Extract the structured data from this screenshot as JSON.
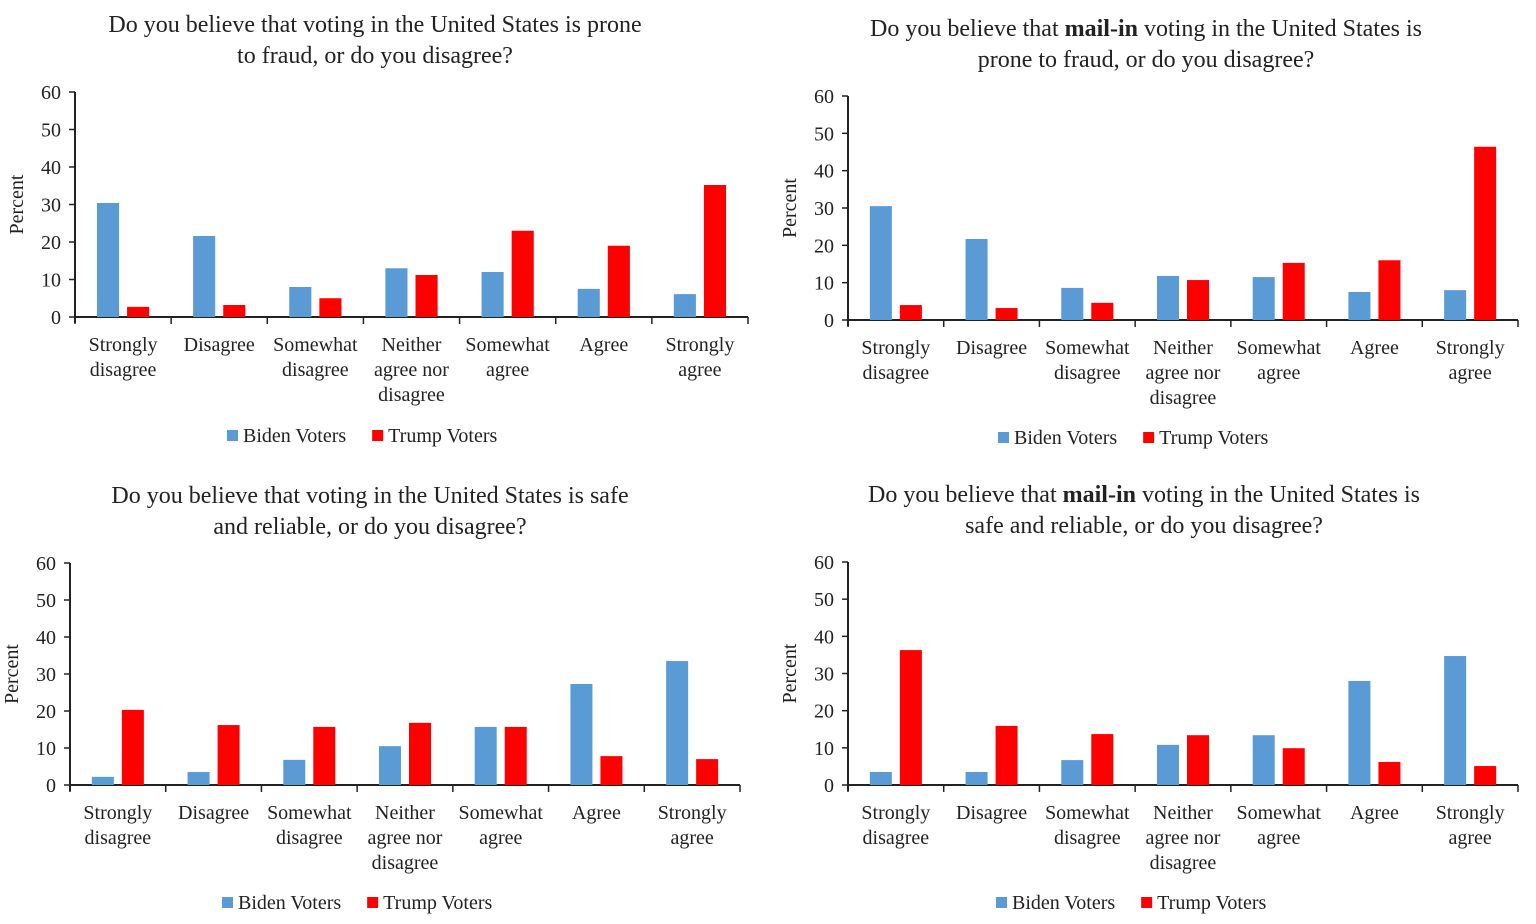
{
  "colors": {
    "biden": "#5B9BD5",
    "trump": "#FF0000",
    "axis": "#222222"
  },
  "chart_data": [
    {
      "type": "bar",
      "title": {
        "line1_pre": "Do you believe that voting in the United States is prone",
        "line1_bold": "",
        "line1_post": "",
        "line2": "to fraud, or do you disagree?"
      },
      "ylabel": "Percent",
      "ylim": [
        0,
        60
      ],
      "yticks": [
        "0",
        "10",
        "20",
        "30",
        "40",
        "50",
        "60"
      ],
      "categories": [
        [
          "Strongly",
          "disagree"
        ],
        [
          "Disagree"
        ],
        [
          "Somewhat",
          "disagree"
        ],
        [
          "Neither",
          "agree nor",
          "disagree"
        ],
        [
          "Somewhat",
          "agree"
        ],
        [
          "Agree"
        ],
        [
          "Strongly",
          "agree"
        ]
      ],
      "legend": "bottom",
      "series": [
        {
          "name": "Biden Voters",
          "values": [
            30.4,
            21.6,
            8.0,
            13.0,
            12.0,
            7.5,
            6.1
          ]
        },
        {
          "name": "Trump Voters",
          "values": [
            2.7,
            3.2,
            5.0,
            11.2,
            23.0,
            19.0,
            35.2
          ]
        }
      ]
    },
    {
      "type": "bar",
      "title": {
        "line1_pre": "Do you believe that ",
        "line1_bold": "mail-in",
        "line1_post": " voting in the United States is",
        "line2": "prone to fraud, or do you disagree?"
      },
      "ylabel": "Percent",
      "ylim": [
        0,
        60
      ],
      "yticks": [
        "0",
        "10",
        "20",
        "30",
        "40",
        "50",
        "60"
      ],
      "categories": [
        [
          "Strongly",
          "disagree"
        ],
        [
          "Disagree"
        ],
        [
          "Somewhat",
          "disagree"
        ],
        [
          "Neither",
          "agree nor",
          "disagree"
        ],
        [
          "Somewhat",
          "agree"
        ],
        [
          "Agree"
        ],
        [
          "Strongly",
          "agree"
        ]
      ],
      "legend": "bottom",
      "series": [
        {
          "name": "Biden Voters",
          "values": [
            30.5,
            21.7,
            8.6,
            11.8,
            11.5,
            7.5,
            8.0
          ]
        },
        {
          "name": "Trump Voters",
          "values": [
            4.0,
            3.2,
            4.6,
            10.7,
            15.3,
            16.0,
            46.4
          ]
        }
      ]
    },
    {
      "type": "bar",
      "title": {
        "line1_pre": "Do you believe that voting in the United States is safe",
        "line1_bold": "",
        "line1_post": "",
        "line2": "and reliable, or do you disagree?"
      },
      "ylabel": "Percent",
      "ylim": [
        0,
        60
      ],
      "yticks": [
        "0",
        "10",
        "20",
        "30",
        "40",
        "50",
        "60"
      ],
      "categories": [
        [
          "Strongly",
          "disagree"
        ],
        [
          "Disagree"
        ],
        [
          "Somewhat",
          "disagree"
        ],
        [
          "Neither",
          "agree nor",
          "disagree"
        ],
        [
          "Somewhat",
          "agree"
        ],
        [
          "Agree"
        ],
        [
          "Strongly",
          "agree"
        ]
      ],
      "legend": "bottom",
      "series": [
        {
          "name": "Biden Voters",
          "values": [
            2.2,
            3.5,
            6.8,
            10.5,
            15.7,
            27.3,
            33.5
          ]
        },
        {
          "name": "Trump Voters",
          "values": [
            20.3,
            16.2,
            15.7,
            16.8,
            15.7,
            7.8,
            7.0
          ]
        }
      ]
    },
    {
      "type": "bar",
      "title": {
        "line1_pre": "Do you believe that ",
        "line1_bold": "mail-in",
        "line1_post": " voting in the United States is",
        "line2": "safe and reliable, or do you disagree?"
      },
      "ylabel": "Percent",
      "ylim": [
        0,
        60
      ],
      "yticks": [
        "0",
        "10",
        "20",
        "30",
        "40",
        "50",
        "60"
      ],
      "categories": [
        [
          "Strongly",
          "disagree"
        ],
        [
          "Disagree"
        ],
        [
          "Somewhat",
          "disagree"
        ],
        [
          "Neither",
          "agree nor",
          "disagree"
        ],
        [
          "Somewhat",
          "agree"
        ],
        [
          "Agree"
        ],
        [
          "Strongly",
          "agree"
        ]
      ],
      "legend": "bottom",
      "series": [
        {
          "name": "Biden Voters",
          "values": [
            3.5,
            3.5,
            6.7,
            10.8,
            13.4,
            28.0,
            34.7
          ]
        },
        {
          "name": "Trump Voters",
          "values": [
            36.3,
            15.9,
            13.7,
            13.4,
            9.9,
            6.2,
            5.1
          ]
        }
      ]
    }
  ]
}
